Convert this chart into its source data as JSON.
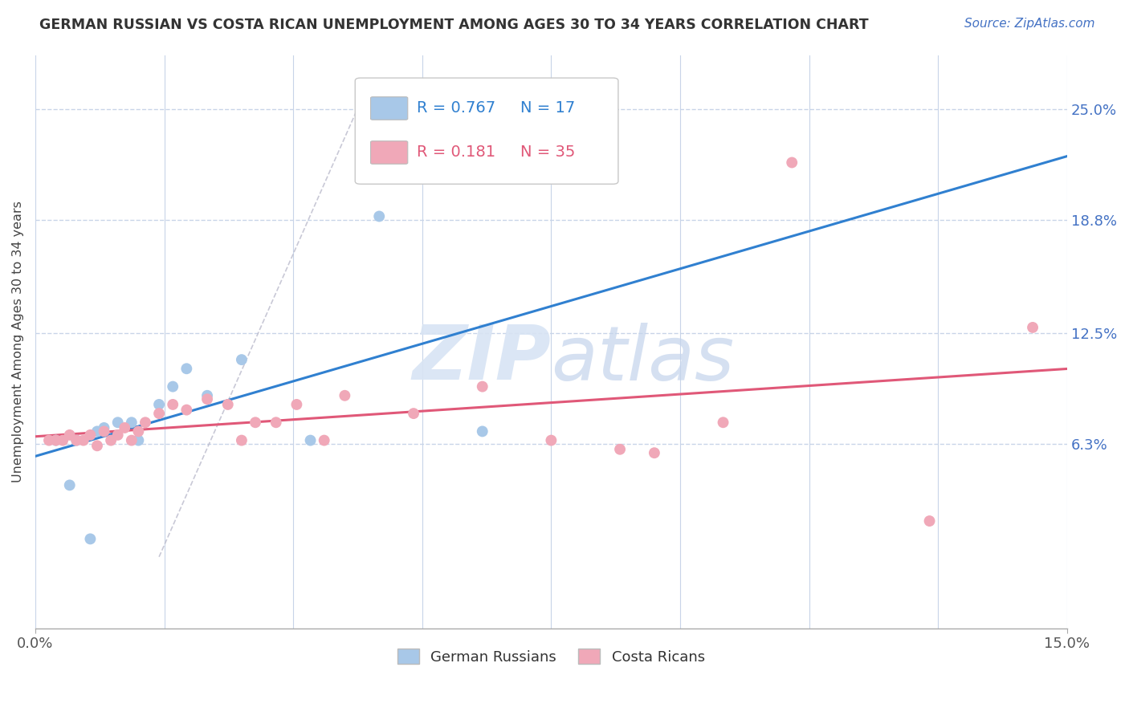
{
  "title": "GERMAN RUSSIAN VS COSTA RICAN UNEMPLOYMENT AMONG AGES 30 TO 34 YEARS CORRELATION CHART",
  "source": "Source: ZipAtlas.com",
  "ylabel": "Unemployment Among Ages 30 to 34 years",
  "xlim": [
    0.0,
    0.15
  ],
  "ylim": [
    -0.04,
    0.28
  ],
  "ytick_vals": [
    0.063,
    0.125,
    0.188,
    0.25
  ],
  "ytick_labels": [
    "6.3%",
    "12.5%",
    "18.8%",
    "25.0%"
  ],
  "xtick_vals": [
    0.0,
    0.15
  ],
  "xtick_labels": [
    "0.0%",
    "15.0%"
  ],
  "german_russian_x": [
    0.003,
    0.005,
    0.006,
    0.008,
    0.009,
    0.01,
    0.012,
    0.014,
    0.015,
    0.018,
    0.02,
    0.022,
    0.025,
    0.03,
    0.04,
    0.05,
    0.065
  ],
  "german_russian_y": [
    0.065,
    0.04,
    0.065,
    0.01,
    0.07,
    0.072,
    0.075,
    0.075,
    0.065,
    0.085,
    0.095,
    0.105,
    0.09,
    0.11,
    0.065,
    0.19,
    0.07
  ],
  "costa_rican_x": [
    0.002,
    0.003,
    0.004,
    0.005,
    0.006,
    0.007,
    0.008,
    0.009,
    0.01,
    0.011,
    0.012,
    0.013,
    0.014,
    0.015,
    0.016,
    0.018,
    0.02,
    0.022,
    0.025,
    0.028,
    0.03,
    0.032,
    0.035,
    0.038,
    0.042,
    0.045,
    0.055,
    0.065,
    0.075,
    0.085,
    0.09,
    0.1,
    0.11,
    0.13,
    0.145
  ],
  "costa_rican_y": [
    0.065,
    0.065,
    0.065,
    0.068,
    0.065,
    0.065,
    0.068,
    0.062,
    0.07,
    0.065,
    0.068,
    0.072,
    0.065,
    0.07,
    0.075,
    0.08,
    0.085,
    0.082,
    0.088,
    0.085,
    0.065,
    0.075,
    0.075,
    0.085,
    0.065,
    0.09,
    0.08,
    0.095,
    0.065,
    0.06,
    0.058,
    0.075,
    0.22,
    0.02,
    0.128
  ],
  "gr_color": "#a8c8e8",
  "cr_color": "#f0a8b8",
  "gr_line_color": "#3080d0",
  "cr_line_color": "#e05878",
  "gr_R": "0.767",
  "gr_N": "17",
  "cr_R": "0.181",
  "cr_N": "35",
  "background_color": "#ffffff",
  "grid_color": "#c8d4e8",
  "watermark_color": "#d8e4f4"
}
